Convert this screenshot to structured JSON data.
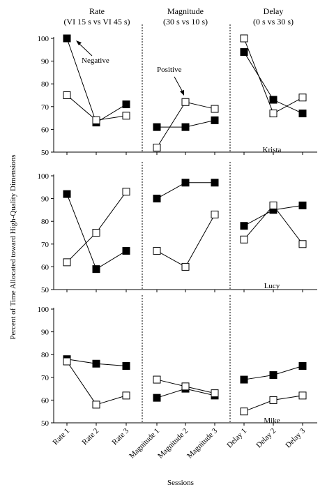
{
  "chart_data": {
    "type": "line",
    "headers": [
      {
        "line1": "Rate",
        "line2": "(VI 15 s vs VI 45 s)"
      },
      {
        "line1": "Magnitude",
        "line2": "(30 s vs 10 s)"
      },
      {
        "line1": "Delay",
        "line2": "(0 s vs 30 s)"
      }
    ],
    "xlabel": "Sessions",
    "ylabel": "Percent of Time Allocated toward High-Quality Dimensions",
    "ylim": [
      50,
      100
    ],
    "yticks": [
      50,
      60,
      70,
      80,
      90,
      100
    ],
    "x_tick_labels": [
      "Rate 1",
      "Rate 2",
      "Rate 3",
      "Magnitude 1",
      "Magnitude 2",
      "Magnitude 3",
      "Delay 1",
      "Delay 2",
      "Delay 3"
    ],
    "marker_legend": {
      "filled": "Negative",
      "open": "Positive"
    },
    "panels": [
      {
        "participant": "Krista",
        "filled": [
          [
            100,
            63,
            71
          ],
          [
            61,
            61,
            64
          ],
          [
            94,
            73,
            67
          ]
        ],
        "open": [
          [
            75,
            64,
            66
          ],
          [
            52,
            72,
            69
          ],
          [
            100,
            67,
            74
          ]
        ]
      },
      {
        "participant": "Lucy",
        "filled": [
          [
            92,
            59,
            67
          ],
          [
            90,
            97,
            97
          ],
          [
            78,
            85,
            87
          ]
        ],
        "open": [
          [
            62,
            75,
            93
          ],
          [
            67,
            60,
            83
          ],
          [
            72,
            87,
            70
          ]
        ]
      },
      {
        "participant": "Mike",
        "filled": [
          [
            78,
            76,
            75
          ],
          [
            61,
            65,
            62
          ],
          [
            69,
            71,
            75
          ]
        ],
        "open": [
          [
            77,
            58,
            62
          ],
          [
            69,
            66,
            63
          ],
          [
            55,
            60,
            62
          ]
        ]
      }
    ]
  }
}
